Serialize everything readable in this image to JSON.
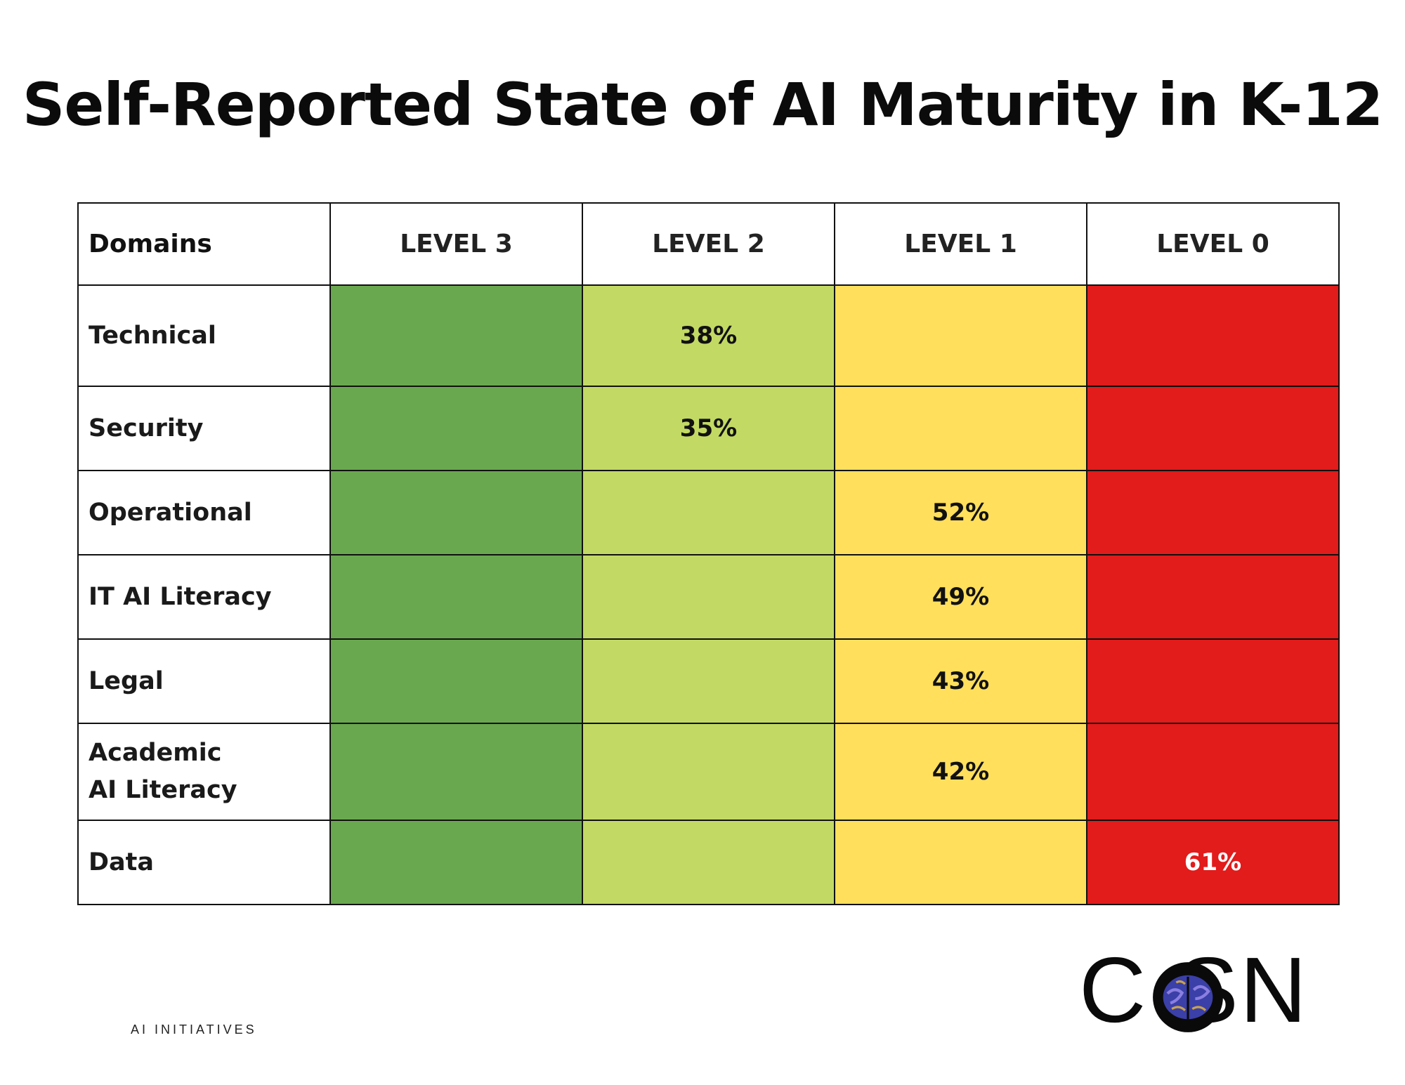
{
  "chart_data": {
    "type": "table",
    "title": "Self-Reported State of AI Maturity in K-12",
    "columns": [
      "Domains",
      "LEVEL 3",
      "LEVEL 2",
      "LEVEL 1",
      "LEVEL 0"
    ],
    "level_colors": [
      "#6aa84f",
      "#c2d964",
      "#ffdf5c",
      "#e21b1b"
    ],
    "rows": [
      {
        "domain": "Technical",
        "values": [
          "",
          "38%",
          "",
          ""
        ]
      },
      {
        "domain": "Security",
        "values": [
          "",
          "35%",
          "",
          ""
        ]
      },
      {
        "domain": "Operational",
        "values": [
          "",
          "",
          "52%",
          ""
        ]
      },
      {
        "domain": "IT AI Literacy",
        "values": [
          "",
          "",
          "49%",
          ""
        ]
      },
      {
        "domain": "Legal",
        "values": [
          "",
          "",
          "43%",
          ""
        ]
      },
      {
        "domain": "Academic AI Literacy",
        "values": [
          "",
          "",
          "42%",
          ""
        ]
      },
      {
        "domain": "Data",
        "values": [
          "",
          "",
          "",
          "61%"
        ]
      }
    ]
  },
  "logo": {
    "name": "CoSN",
    "subtitle": "AI INITIATIVES"
  }
}
